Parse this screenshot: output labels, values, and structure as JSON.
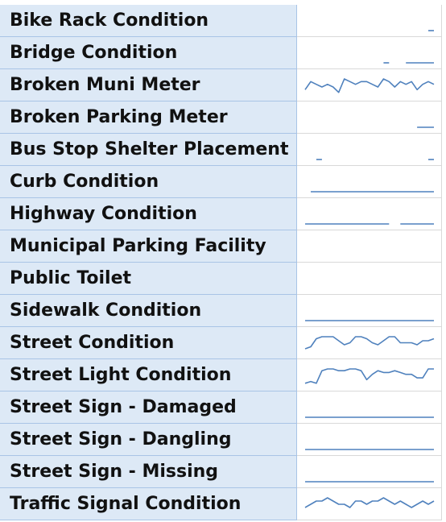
{
  "sheet": {
    "line_color": "#4f81bd",
    "label_fill": "#dde9f6",
    "rows": [
      {
        "label": "Bike Rack Condition",
        "spark": [
          null,
          null,
          null,
          null,
          null,
          null,
          null,
          null,
          null,
          null,
          null,
          null,
          null,
          null,
          null,
          null,
          null,
          null,
          null,
          null,
          null,
          null,
          0,
          0
        ]
      },
      {
        "label": "Bridge Condition",
        "spark": [
          null,
          null,
          null,
          null,
          null,
          null,
          null,
          null,
          null,
          null,
          null,
          null,
          null,
          null,
          0,
          0,
          null,
          null,
          0,
          0,
          0,
          0,
          0,
          0
        ]
      },
      {
        "label": "Broken Muni Meter",
        "spark": [
          2,
          5,
          4,
          3,
          4,
          3,
          1,
          6,
          5,
          4,
          5,
          5,
          4,
          3,
          6,
          5,
          3,
          5,
          4,
          5,
          2,
          4,
          5,
          4
        ]
      },
      {
        "label": "Broken Parking Meter",
        "spark": [
          null,
          null,
          null,
          null,
          null,
          null,
          null,
          null,
          null,
          null,
          null,
          null,
          null,
          null,
          null,
          null,
          null,
          null,
          null,
          null,
          0,
          0,
          0,
          0
        ]
      },
      {
        "label": "Bus Stop Shelter Placement",
        "spark": [
          null,
          null,
          0,
          0,
          null,
          null,
          null,
          null,
          null,
          null,
          null,
          null,
          null,
          null,
          null,
          null,
          null,
          null,
          null,
          null,
          null,
          null,
          0,
          0
        ]
      },
      {
        "label": "Curb Condition",
        "spark": [
          null,
          0,
          0,
          0,
          0,
          0,
          0,
          0,
          0,
          0,
          0,
          0,
          0,
          0,
          0,
          0,
          0,
          0,
          0,
          0,
          0,
          0,
          0,
          0
        ]
      },
      {
        "label": "Highway Condition",
        "spark": [
          0,
          0,
          0,
          0,
          0,
          0,
          0,
          0,
          0,
          0,
          0,
          0,
          0,
          0,
          0,
          0,
          null,
          0,
          0,
          0,
          0,
          0,
          0,
          0
        ]
      },
      {
        "label": "Municipal Parking Facility",
        "spark": []
      },
      {
        "label": "Public Toilet",
        "spark": []
      },
      {
        "label": "Sidewalk Condition",
        "spark": [
          0,
          0,
          0,
          0,
          0,
          0,
          0,
          0,
          0,
          0,
          0,
          0,
          0,
          0,
          0,
          0,
          0,
          0,
          0,
          0,
          0,
          0,
          0,
          0
        ]
      },
      {
        "label": "Street Condition",
        "spark": [
          2,
          3,
          7,
          8,
          8,
          8,
          6,
          4,
          5,
          8,
          8,
          7,
          5,
          4,
          6,
          8,
          8,
          5,
          5,
          5,
          4,
          6,
          6,
          7
        ]
      },
      {
        "label": "Street Light Condition",
        "spark": [
          1,
          2,
          1,
          8,
          9,
          9,
          8,
          8,
          9,
          9,
          8,
          3,
          6,
          8,
          7,
          7,
          8,
          7,
          6,
          6,
          4,
          4,
          9,
          9
        ]
      },
      {
        "label": "Street Sign - Damaged",
        "spark": [
          0,
          0,
          0,
          0,
          0,
          0,
          0,
          0,
          0,
          0,
          0,
          0,
          0,
          0,
          0,
          0,
          0,
          0,
          0,
          0,
          0,
          0,
          0,
          0
        ]
      },
      {
        "label": "Street Sign - Dangling",
        "spark": [
          0,
          0,
          0,
          0,
          0,
          0,
          0,
          0,
          0,
          0,
          0,
          0,
          0,
          0,
          0,
          0,
          0,
          0,
          0,
          0,
          0,
          0,
          0,
          0
        ]
      },
      {
        "label": "Street Sign - Missing",
        "spark": [
          0,
          0,
          0,
          0,
          0,
          0,
          0,
          0,
          0,
          0,
          0,
          0,
          0,
          0,
          0,
          0,
          0,
          0,
          0,
          0,
          0,
          0,
          0,
          0
        ]
      },
      {
        "label": "Traffic Signal Condition",
        "spark": [
          2,
          3,
          4,
          4,
          5,
          4,
          3,
          3,
          2,
          4,
          4,
          3,
          4,
          4,
          5,
          4,
          3,
          4,
          3,
          2,
          3,
          4,
          3,
          4
        ]
      }
    ]
  }
}
